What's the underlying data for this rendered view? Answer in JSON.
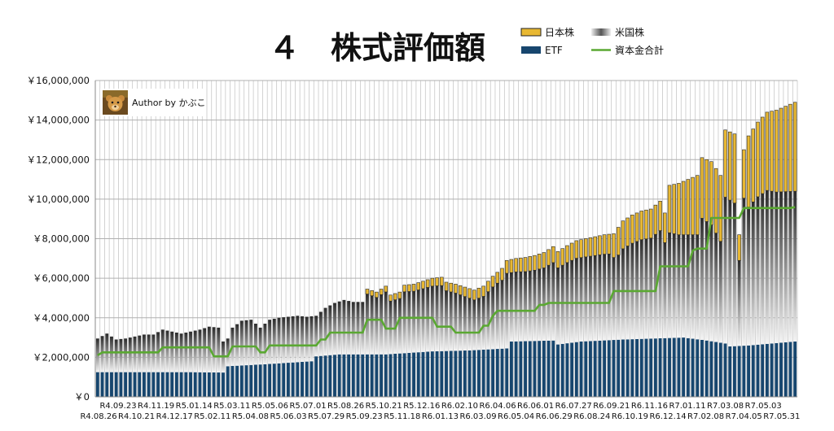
{
  "chart_data": {
    "type": "bar",
    "stacked": true,
    "title": "４　株式評価額",
    "author": "Author by かぶこ",
    "ylabel": "",
    "xlabel": "",
    "ylim": [
      0,
      16000000
    ],
    "yticks": [
      "￥0",
      "￥2,000,000",
      "￥4,000,000",
      "￥6,000,000",
      "￥8,000,000",
      "￥10,000,000",
      "￥12,000,000",
      "￥14,000,000",
      "￥16,000,000"
    ],
    "xtick_labels_top": [
      "R4.09.23",
      "R4.11.19",
      "R5.01.14",
      "R5.03.11",
      "R5.05.06",
      "R5.07.01",
      "R5.08.26",
      "R5.10.21",
      "R5.12.16",
      "R6.02.10",
      "R6.04.06",
      "R6.06.01",
      "R6.07.27",
      "R6.09.21",
      "R6.11.16",
      "R7.01.11",
      "R7.03.08",
      "R7.05.03"
    ],
    "xtick_labels_bottom": [
      "R4.08.26",
      "R4.10.21",
      "R4.12.17",
      "R5.02.11",
      "R5.04.08",
      "R5.06.03",
      "R5.07.29",
      "R5.09.23",
      "R5.11.18",
      "R6.01.13",
      "R6.03.09",
      "R6.05.04",
      "R6.06.29",
      "R6.08.24",
      "R6.10.19",
      "R6.12.14",
      "R7.02.08",
      "R7.04.05",
      "R7.05.31"
    ],
    "legend": [
      {
        "name": "日本株",
        "color": "#e8b833",
        "kind": "bar"
      },
      {
        "name": "米国株",
        "color": "#555555",
        "kind": "bar-gradient"
      },
      {
        "name": "ETF",
        "color": "#17466e",
        "kind": "bar"
      },
      {
        "name": "資本金合計",
        "color": "#5aa832",
        "kind": "line"
      }
    ],
    "legend_position": "top-right",
    "grid": true,
    "total_anchors": [
      [
        0,
        2950000
      ],
      [
        2,
        3200000
      ],
      [
        4,
        2900000
      ],
      [
        6,
        2950000
      ],
      [
        8,
        3050000
      ],
      [
        10,
        3150000
      ],
      [
        12,
        3150000
      ],
      [
        14,
        3400000
      ],
      [
        16,
        3300000
      ],
      [
        18,
        3200000
      ],
      [
        20,
        3300000
      ],
      [
        22,
        3400000
      ],
      [
        24,
        3550000
      ],
      [
        26,
        3500000
      ],
      [
        27,
        2800000
      ],
      [
        28,
        2950000
      ],
      [
        29,
        3500000
      ],
      [
        31,
        3850000
      ],
      [
        33,
        3900000
      ],
      [
        35,
        3500000
      ],
      [
        37,
        3900000
      ],
      [
        39,
        4000000
      ],
      [
        41,
        4050000
      ],
      [
        43,
        4100000
      ],
      [
        45,
        4050000
      ],
      [
        47,
        4100000
      ],
      [
        49,
        4500000
      ],
      [
        51,
        4750000
      ],
      [
        53,
        4900000
      ],
      [
        55,
        4800000
      ],
      [
        57,
        4800000
      ],
      [
        58,
        5450000
      ],
      [
        60,
        5300000
      ],
      [
        62,
        5600000
      ],
      [
        63,
        5150000
      ],
      [
        65,
        5300000
      ],
      [
        66,
        5650000
      ],
      [
        68,
        5700000
      ],
      [
        70,
        5850000
      ],
      [
        72,
        6000000
      ],
      [
        74,
        6050000
      ],
      [
        75,
        5800000
      ],
      [
        77,
        5700000
      ],
      [
        79,
        5550000
      ],
      [
        81,
        5400000
      ],
      [
        83,
        5600000
      ],
      [
        85,
        6100000
      ],
      [
        87,
        6500000
      ],
      [
        88,
        6900000
      ],
      [
        90,
        7000000
      ],
      [
        92,
        7050000
      ],
      [
        94,
        7150000
      ],
      [
        96,
        7300000
      ],
      [
        98,
        7600000
      ],
      [
        99,
        7350000
      ],
      [
        101,
        7650000
      ],
      [
        103,
        7900000
      ],
      [
        105,
        8000000
      ],
      [
        107,
        8100000
      ],
      [
        109,
        8200000
      ],
      [
        111,
        8250000
      ],
      [
        113,
        8900000
      ],
      [
        115,
        9200000
      ],
      [
        117,
        9400000
      ],
      [
        119,
        9500000
      ],
      [
        121,
        9900000
      ],
      [
        122,
        9300000
      ],
      [
        123,
        10700000
      ],
      [
        125,
        10800000
      ],
      [
        127,
        11000000
      ],
      [
        129,
        11200000
      ],
      [
        130,
        12100000
      ],
      [
        132,
        11900000
      ],
      [
        134,
        11200000
      ],
      [
        135,
        13500000
      ],
      [
        137,
        13300000
      ],
      [
        138,
        8200000
      ],
      [
        139,
        12500000
      ],
      [
        140,
        13200000
      ],
      [
        142,
        13900000
      ],
      [
        144,
        14400000
      ],
      [
        146,
        14500000
      ],
      [
        148,
        14700000
      ],
      [
        150,
        14900000
      ]
    ],
    "etf_anchors": [
      [
        0,
        1250000
      ],
      [
        10,
        1250000
      ],
      [
        20,
        1250000
      ],
      [
        27,
        1230000
      ],
      [
        28,
        1550000
      ],
      [
        36,
        1650000
      ],
      [
        46,
        1800000
      ],
      [
        47,
        2050000
      ],
      [
        52,
        2150000
      ],
      [
        62,
        2150000
      ],
      [
        72,
        2300000
      ],
      [
        80,
        2350000
      ],
      [
        88,
        2450000
      ],
      [
        89,
        2800000
      ],
      [
        98,
        2850000
      ],
      [
        99,
        2650000
      ],
      [
        104,
        2800000
      ],
      [
        113,
        2900000
      ],
      [
        126,
        3000000
      ],
      [
        131,
        2850000
      ],
      [
        135,
        2700000
      ],
      [
        136,
        2550000
      ],
      [
        140,
        2600000
      ],
      [
        145,
        2700000
      ],
      [
        150,
        2800000
      ]
    ],
    "japan_anchors": [
      [
        0,
        0
      ],
      [
        57,
        0
      ],
      [
        58,
        250000
      ],
      [
        72,
        400000
      ],
      [
        86,
        550000
      ],
      [
        88,
        650000
      ],
      [
        110,
        1000000
      ],
      [
        112,
        1400000
      ],
      [
        122,
        1500000
      ],
      [
        123,
        2400000
      ],
      [
        129,
        3000000
      ],
      [
        135,
        3400000
      ],
      [
        137,
        3500000
      ],
      [
        138,
        1300000
      ],
      [
        140,
        3600000
      ],
      [
        150,
        4500000
      ]
    ],
    "capital_steps": [
      [
        0,
        2100000
      ],
      [
        1,
        2250000
      ],
      [
        14,
        2500000
      ],
      [
        25,
        2050000
      ],
      [
        29,
        2550000
      ],
      [
        35,
        2250000
      ],
      [
        37,
        2600000
      ],
      [
        48,
        2900000
      ],
      [
        50,
        3250000
      ],
      [
        58,
        3900000
      ],
      [
        62,
        3450000
      ],
      [
        65,
        4000000
      ],
      [
        73,
        3550000
      ],
      [
        77,
        3250000
      ],
      [
        83,
        3600000
      ],
      [
        85,
        4100000
      ],
      [
        86,
        4350000
      ],
      [
        95,
        4650000
      ],
      [
        97,
        4750000
      ],
      [
        111,
        5350000
      ],
      [
        118,
        5350000
      ],
      [
        121,
        6600000
      ],
      [
        127,
        6600000
      ],
      [
        128,
        7400000
      ],
      [
        129,
        7500000
      ],
      [
        131,
        7500000
      ],
      [
        132,
        9050000
      ],
      [
        139,
        9550000
      ],
      [
        150,
        9600000
      ]
    ],
    "bar_count": 151
  }
}
